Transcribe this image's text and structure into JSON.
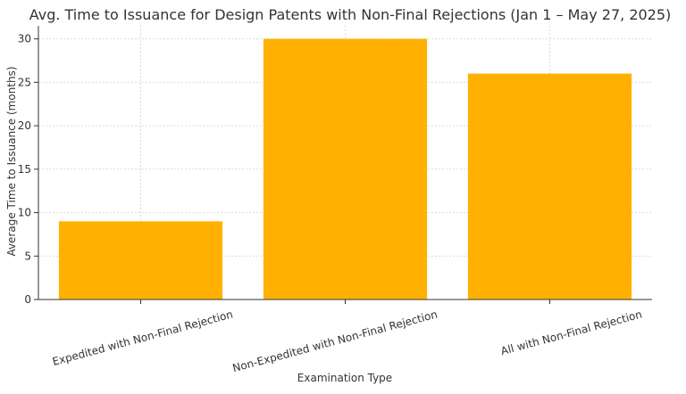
{
  "chart_data": {
    "type": "bar",
    "title": "Avg. Time to Issuance for Design Patents with Non-Final Rejections (Jan 1 – May 27, 2025)",
    "xlabel": "Examination Type",
    "ylabel": "Average Time to Issuance (months)",
    "categories": [
      "Expedited with Non-Final Rejection",
      "Non-Expedited with Non-Final Rejection",
      "All with Non-Final Rejection"
    ],
    "values": [
      9,
      30,
      26
    ],
    "ylim": [
      0,
      31.5
    ],
    "yticks": [
      0,
      5,
      10,
      15,
      20,
      25,
      30
    ],
    "grid": true,
    "bar_color": "#FFB000"
  }
}
